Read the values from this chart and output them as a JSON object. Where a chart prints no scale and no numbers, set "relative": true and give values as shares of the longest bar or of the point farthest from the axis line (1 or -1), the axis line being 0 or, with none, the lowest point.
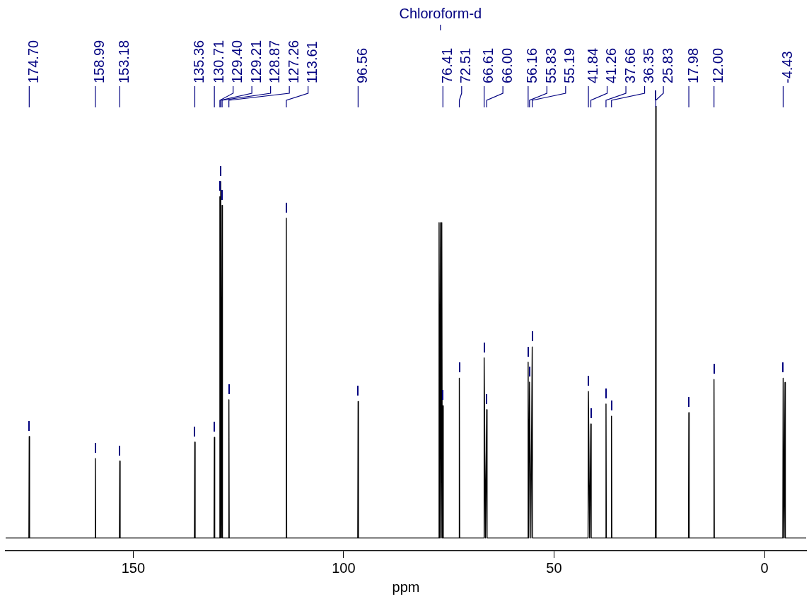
{
  "chart_data": {
    "type": "line",
    "relative": true,
    "xlabel": "ppm",
    "xlim": [
      180.3,
      -9.9
    ],
    "xticks": [
      150,
      100,
      50,
      0
    ],
    "grid": false,
    "legend": false,
    "marker": "none",
    "line_style": "solid",
    "series": [
      {
        "color": "#000000",
        "x": [
          180.3,
          174.78,
          174.7,
          174.62,
          159.07,
          158.99,
          158.91,
          153.26,
          153.18,
          153.1,
          135.44,
          135.36,
          135.28,
          130.79,
          130.71,
          130.63,
          129.48,
          129.4,
          129.3,
          129.21,
          129.04,
          128.87,
          128.79,
          127.34,
          127.26,
          127.18,
          113.69,
          113.61,
          113.53,
          96.64,
          96.56,
          96.48,
          77.4,
          77.32,
          77.16,
          77.0,
          76.84,
          76.68,
          76.55,
          76.41,
          76.33,
          72.59,
          72.51,
          72.43,
          66.69,
          66.61,
          66.3,
          66.0,
          65.92,
          56.24,
          56.16,
          56.0,
          55.83,
          55.51,
          55.19,
          55.11,
          41.92,
          41.84,
          41.55,
          41.26,
          41.18,
          37.74,
          37.66,
          37.58,
          36.43,
          36.35,
          36.27,
          25.91,
          25.83,
          25.75,
          18.06,
          17.98,
          17.9,
          12.08,
          12.0,
          11.92,
          -4.35,
          -4.43,
          -4.65,
          -4.87,
          -4.95,
          -9.9
        ],
        "values": [
          0,
          0,
          0.235,
          0,
          0,
          0.184,
          0,
          0,
          0.178,
          0,
          0,
          0.222,
          0,
          0,
          0.233,
          0,
          0,
          0.79,
          0,
          0.825,
          0,
          0.77,
          0,
          0,
          0.32,
          0,
          0,
          0.74,
          0,
          0,
          0.316,
          0,
          0,
          0.73,
          0,
          0.73,
          0,
          0.73,
          0,
          0.306,
          0,
          0,
          0.37,
          0,
          0,
          0.417,
          0,
          0.297,
          0,
          0,
          0.407,
          0,
          0.361,
          0,
          0.442,
          0,
          0,
          0.339,
          0,
          0.264,
          0,
          0,
          0.31,
          0,
          0,
          0.282,
          0,
          0,
          1,
          0,
          0,
          0.29,
          0,
          0,
          0.367,
          0,
          0,
          0.37,
          0,
          0.36,
          0,
          0
        ]
      }
    ],
    "annotations": [
      {
        "text": "Chloroform-d",
        "x": 77.0
      },
      {
        "text": "174.70",
        "x": 174.7
      },
      {
        "text": "158.99",
        "x": 158.99
      },
      {
        "text": "153.18",
        "x": 153.18
      },
      {
        "text": "135.36",
        "x": 135.36
      },
      {
        "text": "130.71",
        "x": 130.71
      },
      {
        "text": "129.40",
        "x": 129.4
      },
      {
        "text": "129.21",
        "x": 129.21
      },
      {
        "text": "128.87",
        "x": 128.87
      },
      {
        "text": "127.26",
        "x": 127.26
      },
      {
        "text": "113.61",
        "x": 113.61
      },
      {
        "text": "96.56",
        "x": 96.56
      },
      {
        "text": "76.41",
        "x": 76.41
      },
      {
        "text": "72.51",
        "x": 72.51
      },
      {
        "text": "66.61",
        "x": 66.61
      },
      {
        "text": "66.00",
        "x": 66.0
      },
      {
        "text": "56.16",
        "x": 56.16
      },
      {
        "text": "55.83",
        "x": 55.83
      },
      {
        "text": "55.19",
        "x": 55.19
      },
      {
        "text": "41.84",
        "x": 41.84
      },
      {
        "text": "41.26",
        "x": 41.26
      },
      {
        "text": "37.66",
        "x": 37.66
      },
      {
        "text": "36.35",
        "x": 36.35
      },
      {
        "text": "25.83",
        "x": 25.83
      },
      {
        "text": "17.98",
        "x": 17.98
      },
      {
        "text": "12.00",
        "x": 12.0
      },
      {
        "text": "-4.43",
        "x": -4.43
      }
    ]
  }
}
